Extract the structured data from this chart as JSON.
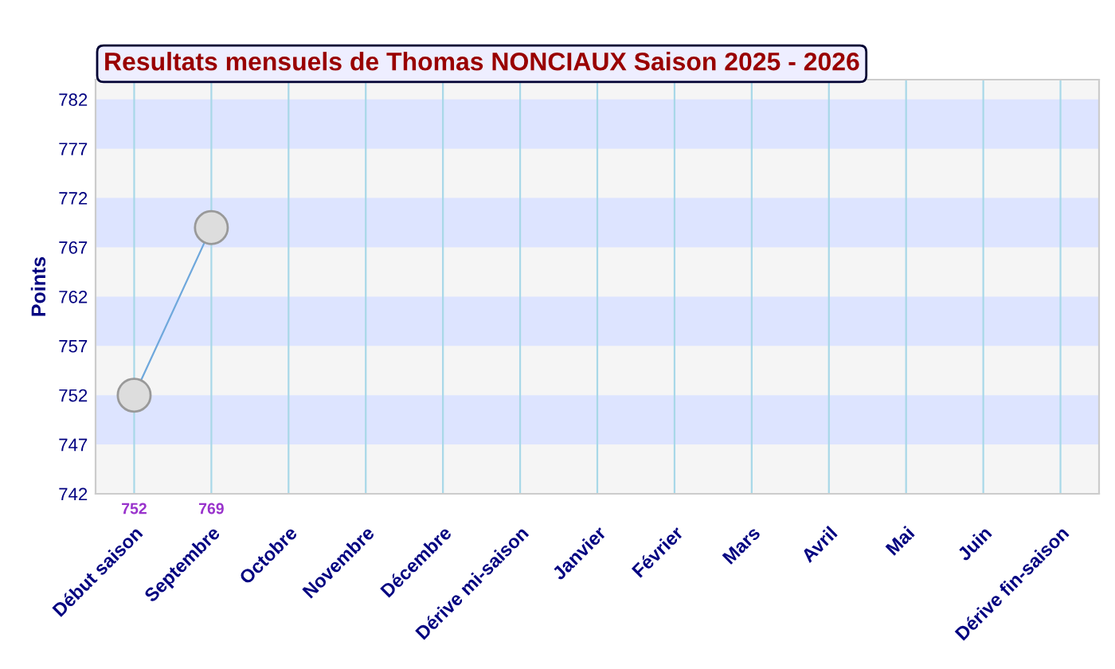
{
  "chart_data": {
    "type": "line",
    "title": "Resultats mensuels de Thomas NONCIAUX Saison 2025 - 2026",
    "ylabel": "Points",
    "categories": [
      "Début saison",
      "Septembre",
      "Octobre",
      "Novembre",
      "Décembre",
      "Dérive mi-saison",
      "Janvier",
      "Février",
      "Mars",
      "Avril",
      "Mai",
      "Juin",
      "Dérive fin-saison"
    ],
    "series": [
      {
        "color": "#6fa8dc",
        "values": [
          752,
          769,
          null,
          null,
          null,
          null,
          null,
          null,
          null,
          null,
          null,
          null,
          null
        ],
        "value_labels": [
          "752",
          "769",
          null,
          null,
          null,
          null,
          null,
          null,
          null,
          null,
          null,
          null,
          null
        ]
      }
    ],
    "ylim": [
      742,
      784
    ],
    "yticks": [
      742,
      747,
      752,
      757,
      762,
      767,
      772,
      777,
      782
    ],
    "bands": [
      {
        "axis": "y",
        "from": 747,
        "to": 752,
        "color": "#dde4ff"
      },
      {
        "axis": "y",
        "from": 757,
        "to": 762,
        "color": "#dde4ff"
      },
      {
        "axis": "y",
        "from": 767,
        "to": 772,
        "color": "#dde4ff"
      },
      {
        "axis": "y",
        "from": 777,
        "to": 782,
        "color": "#dde4ff"
      }
    ],
    "grid": "x",
    "marker": "circle",
    "line_style": "solid"
  }
}
